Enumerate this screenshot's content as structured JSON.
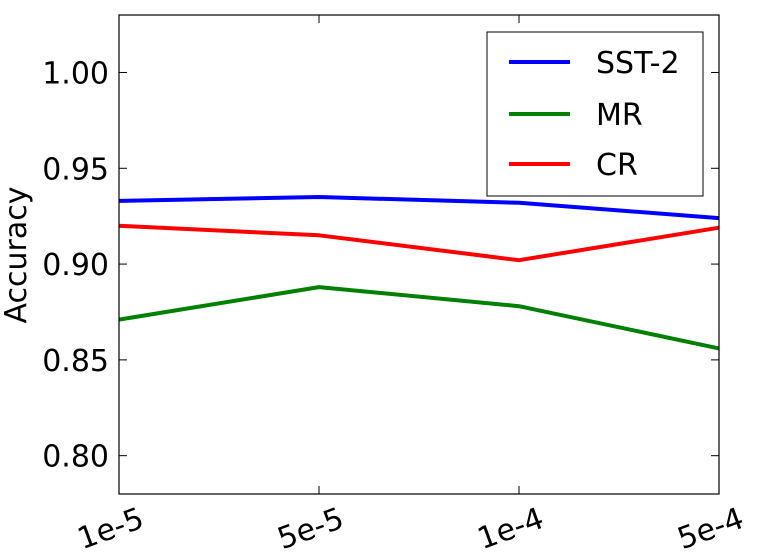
{
  "chart_data": {
    "type": "line",
    "categories": [
      "1e-5",
      "5e-5",
      "1e-4",
      "5e-4"
    ],
    "series": [
      {
        "name": "SST-2",
        "color": "#0000ff",
        "values": [
          0.933,
          0.935,
          0.932,
          0.924
        ]
      },
      {
        "name": "MR",
        "color": "#008000",
        "values": [
          0.871,
          0.888,
          0.878,
          0.856
        ]
      },
      {
        "name": "CR",
        "color": "#ff0000",
        "values": [
          0.92,
          0.915,
          0.902,
          0.919
        ]
      }
    ],
    "title": "",
    "xlabel": "",
    "ylabel": "Accuracy",
    "ylim": [
      0.78,
      1.03
    ],
    "yticks": [
      "0.80",
      "0.85",
      "0.90",
      "0.95",
      "1.00"
    ],
    "legend_position": "top-right",
    "grid": false
  }
}
